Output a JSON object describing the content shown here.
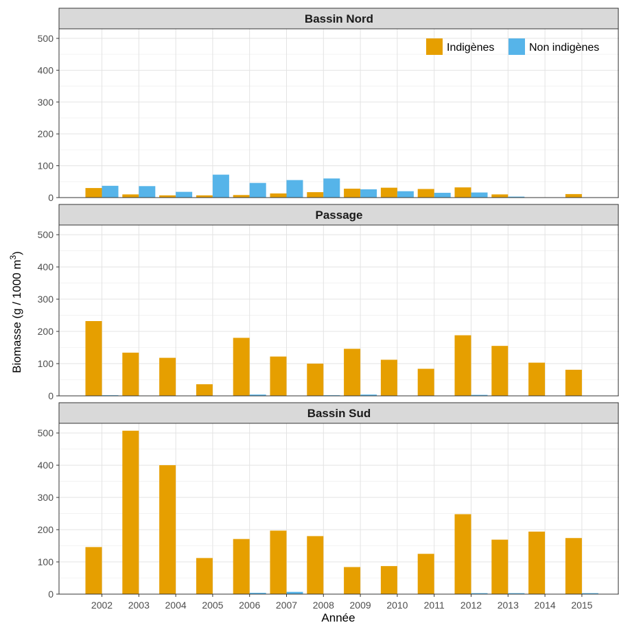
{
  "chart_data": {
    "type": "bar",
    "xlabel": "Année",
    "ylabel": "Biomasse (g / 1000 m",
    "ylabel_superscript": "3",
    "ylabel_suffix": ")",
    "ylim": [
      0,
      530
    ],
    "yticks": [
      0,
      100,
      200,
      300,
      400,
      500
    ],
    "categories": [
      "2002",
      "2003",
      "2004",
      "2005",
      "2006",
      "2007",
      "2008",
      "2009",
      "2010",
      "2011",
      "2012",
      "2013",
      "2014",
      "2015"
    ],
    "legend": {
      "placement": "top-right",
      "entries": [
        {
          "name": "Indigènes",
          "color": "#E69F00"
        },
        {
          "name": "Non indigènes",
          "color": "#56B4E9"
        }
      ]
    },
    "grid": true,
    "panels": [
      {
        "title": "Bassin Nord",
        "series": [
          {
            "name": "Indigènes",
            "color": "#E69F00",
            "values": [
              30,
              10,
              7,
              7,
              8,
              13,
              17,
              28,
              31,
              27,
              32,
              10,
              null,
              11
            ]
          },
          {
            "name": "Non indigènes",
            "color": "#56B4E9",
            "values": [
              37,
              36,
              18,
              72,
              46,
              55,
              60,
              26,
              20,
              15,
              16,
              3,
              null,
              null
            ]
          }
        ]
      },
      {
        "title": "Passage",
        "series": [
          {
            "name": "Indigènes",
            "color": "#E69F00",
            "values": [
              232,
              134,
              118,
              36,
              180,
              122,
              100,
              146,
              112,
              84,
              188,
              155,
              103,
              81
            ]
          },
          {
            "name": "Non indigènes",
            "color": "#56B4E9",
            "values": [
              2,
              null,
              null,
              null,
              4,
              null,
              2,
              4,
              1,
              1,
              3,
              1,
              null,
              null
            ]
          }
        ]
      },
      {
        "title": "Bassin Sud",
        "series": [
          {
            "name": "Indigènes",
            "color": "#E69F00",
            "values": [
              146,
              507,
              400,
              112,
              171,
              197,
              180,
              84,
              87,
              125,
              248,
              169,
              194,
              174
            ]
          },
          {
            "name": "Non indigènes",
            "color": "#56B4E9",
            "values": [
              null,
              null,
              null,
              null,
              4,
              7,
              null,
              null,
              null,
              1,
              3,
              3,
              null,
              3
            ]
          }
        ]
      }
    ]
  }
}
